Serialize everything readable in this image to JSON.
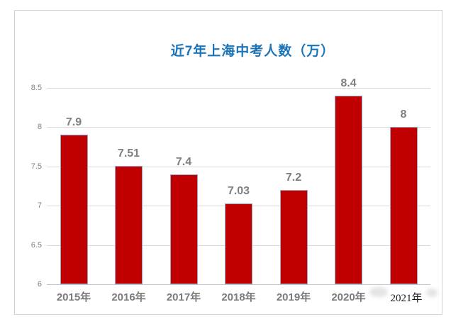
{
  "chart_data": {
    "type": "bar",
    "title": "近7年上海中考人数（万）",
    "categories": [
      "2015年",
      "2016年",
      "2017年",
      "2018年",
      "2019年",
      "2020年",
      "2021年"
    ],
    "values": [
      7.9,
      7.51,
      7.4,
      7.03,
      7.2,
      8.4,
      8
    ],
    "value_labels": [
      "7.9",
      "7.51",
      "7.4",
      "7.03",
      "7.2",
      "8.4",
      "8"
    ],
    "y_ticks": [
      6,
      6.5,
      7,
      7.5,
      8,
      8.5
    ],
    "y_tick_labels": [
      "6",
      "6.5",
      "7",
      "7.5",
      "8",
      "8.5"
    ],
    "ylim": [
      6,
      8.5
    ],
    "xlabel": "",
    "ylabel": "",
    "grid": true,
    "legend_position": "none",
    "bar_color": "#c00000",
    "bar_border_color": "#95a9c6",
    "title_color": "#1b74b8",
    "value_label_color": "#7f7f7f",
    "axis_label_color": "#7a7a7a",
    "gridline_color": "#d9d9d9",
    "frame_border_color": "#d2d2d2",
    "pasted_label_index": 6
  }
}
